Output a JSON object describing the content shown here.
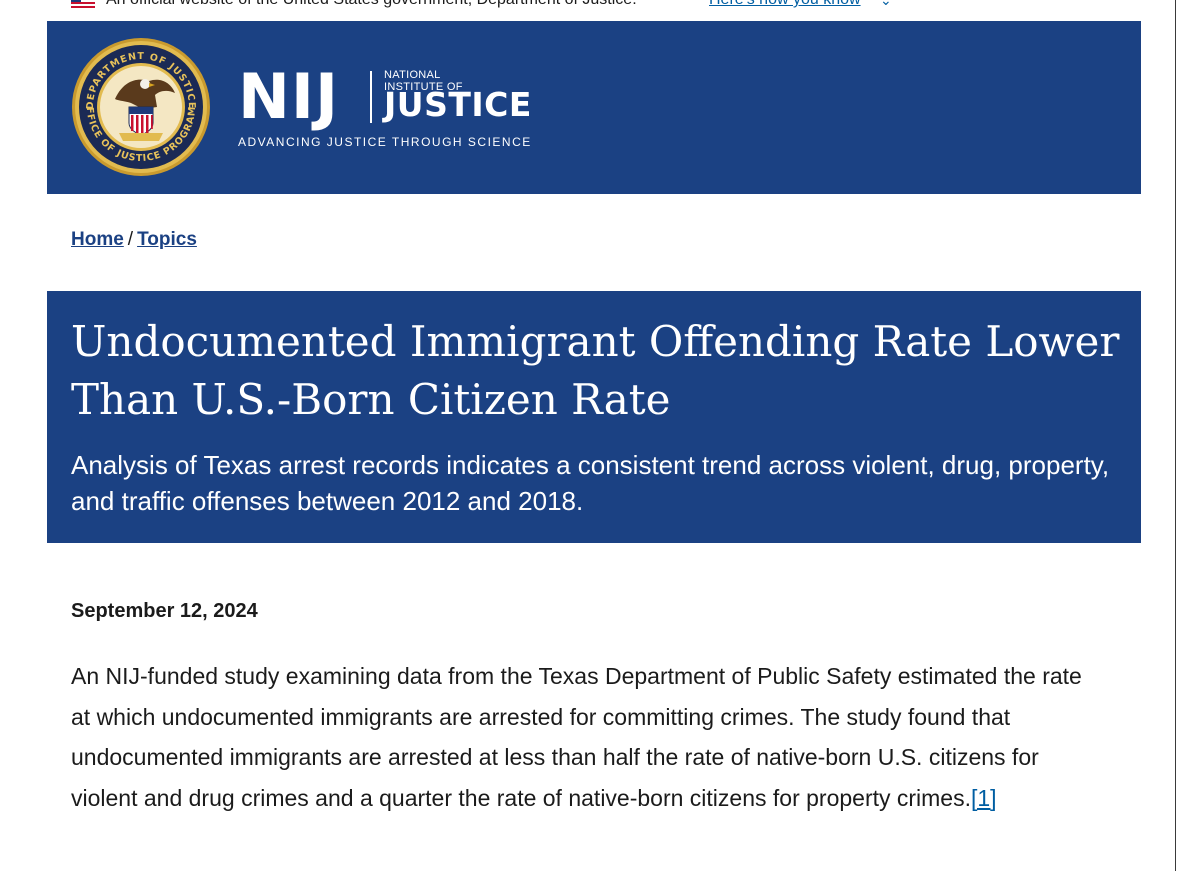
{
  "gov_banner": {
    "text": "An official website of the United States government, Department of Justice.",
    "link": "Here's how you know",
    "chevron_icon": "chevron-down-icon"
  },
  "header": {
    "seal_icon": "office-of-justice-programs-seal-icon",
    "seal_text_top": "DEPARTMENT OF JUSTICE",
    "seal_text_bottom": "OFFICE OF JUSTICE PROGRAMS",
    "logo_acronym": "NIJ",
    "logo_national": "NATIONAL",
    "logo_institute": "INSTITUTE OF",
    "logo_justice": "JUSTICE",
    "tagline": "ADVANCING JUSTICE THROUGH SCIENCE",
    "colors": {
      "header_bg": "#1b4183"
    }
  },
  "breadcrumb": {
    "items": [
      {
        "label": "Home"
      },
      {
        "label": "Topics"
      }
    ],
    "separator": "/"
  },
  "hero": {
    "title": "Undocumented Immigrant Offending Rate Lower Than U.S.-Born Citizen Rate",
    "subtitle": "Analysis of Texas arrest records indicates a consistent trend across violent, drug, property, and traffic offenses between 2012 and 2018."
  },
  "article": {
    "date": "September 12, 2024",
    "intro_text": "An NIJ-funded study examining data from the Texas Department of Public Safety estimated the rate at which undocumented immigrants are arrested for committing crimes. The study found that undocumented immigrants are arrested at less than half the rate of native-born U.S. citizens for violent and drug crimes and a quarter the rate of native-born citizens for property crimes.",
    "footnote_label": "[1]",
    "link_color": "#005ea2"
  }
}
